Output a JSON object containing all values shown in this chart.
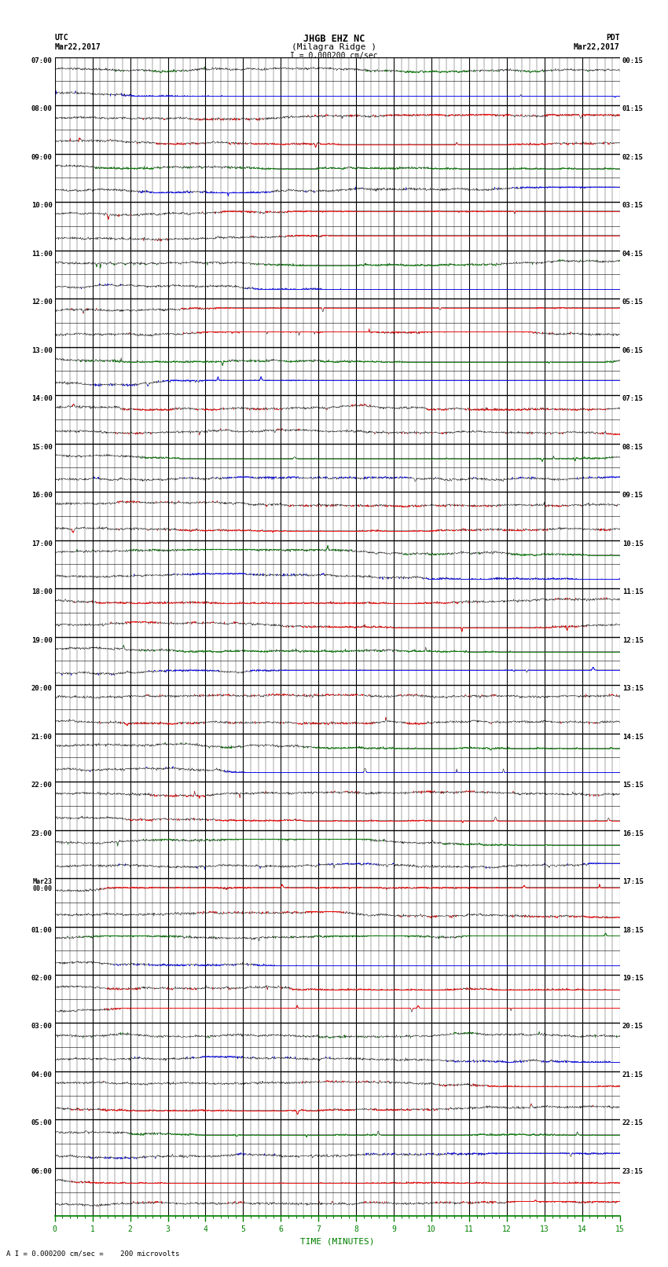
{
  "title_line1": "JHGB EHZ NC",
  "title_line2": "(Milagra Ridge )",
  "scale_text": "I = 0.000200 cm/sec",
  "left_label": "UTC",
  "left_date": "Mar22,2017",
  "right_label": "PDT",
  "right_date": "Mar22,2017",
  "bottom_label": "TIME (MINUTES)",
  "footnote": "A I = 0.000200 cm/sec =    200 microvolts",
  "xlabel_ticks": [
    0,
    1,
    2,
    3,
    4,
    5,
    6,
    7,
    8,
    9,
    10,
    11,
    12,
    13,
    14,
    15
  ],
  "left_times": [
    "07:00",
    "08:00",
    "09:00",
    "10:00",
    "11:00",
    "12:00",
    "13:00",
    "14:00",
    "15:00",
    "16:00",
    "17:00",
    "18:00",
    "19:00",
    "20:00",
    "21:00",
    "22:00",
    "23:00",
    "Mar23\n00:00",
    "01:00",
    "02:00",
    "03:00",
    "04:00",
    "05:00",
    "06:00"
  ],
  "right_times": [
    "00:15",
    "01:15",
    "02:15",
    "03:15",
    "04:15",
    "05:15",
    "06:15",
    "07:15",
    "08:15",
    "09:15",
    "10:15",
    "11:15",
    "12:15",
    "13:15",
    "14:15",
    "15:15",
    "16:15",
    "17:15",
    "18:15",
    "19:15",
    "20:15",
    "21:15",
    "22:15",
    "23:15"
  ],
  "n_rows": 48,
  "bg_color": "#ffffff",
  "line_color": "#000000",
  "grid_color": "#000000",
  "trace_color_main": "#000000",
  "trace_color_red": "#ff0000",
  "trace_color_blue": "#0000ff",
  "trace_color_green": "#008000",
  "axis_bottom_color": "#008000",
  "figwidth": 8.5,
  "figheight": 16.13
}
